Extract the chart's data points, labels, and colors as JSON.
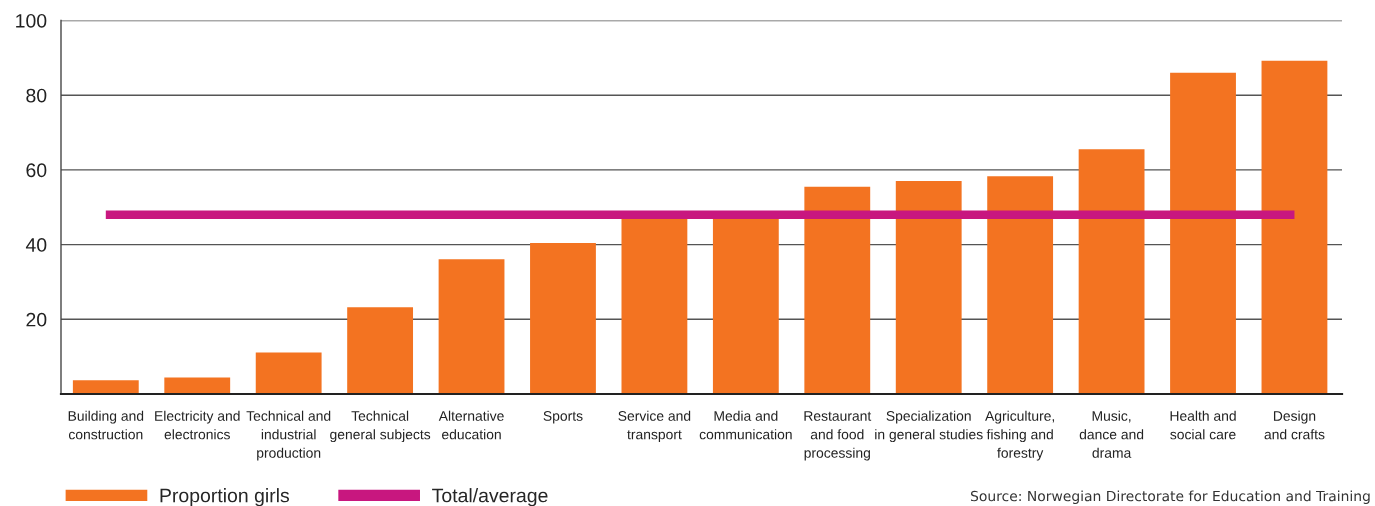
{
  "chart_data": {
    "type": "bar",
    "categories": [
      "Building and\nconstruction",
      "Electricity and\nelectronics",
      "Technical and\nindustrial\nproduction",
      "Technical\ngeneral subjects",
      "Alternative\neducation",
      "Sports",
      "Service and\ntransport",
      "Media and\ncommunication",
      "Restaurant\nand food\nprocessing",
      "Specialization\nin general studies",
      "Agriculture,\nfishing and\nforestry",
      "Music,\ndance and\ndrama",
      "Health and\nsocial care",
      "Design\nand crafts"
    ],
    "series": [
      {
        "name": "Proportion girls",
        "color": "#f37321",
        "values": [
          3.7,
          4.4,
          11.1,
          23.2,
          36.1,
          40.4,
          47.5,
          47.5,
          55.5,
          57.0,
          58.3,
          65.5,
          86.0,
          89.2
        ]
      },
      {
        "name": "Total/average",
        "type": "line",
        "color": "#c8177f",
        "values": [
          48,
          48,
          48,
          48,
          48,
          48,
          48,
          48,
          48,
          48,
          48,
          48,
          48,
          48
        ]
      }
    ],
    "ylim": [
      0,
      100
    ],
    "yticks": [
      20,
      40,
      60,
      80,
      100
    ],
    "grid": "y",
    "legend": "bottom left",
    "line_style": "solid",
    "annotations": [
      "Source: Norwegian Directorate for Education and Training"
    ]
  }
}
